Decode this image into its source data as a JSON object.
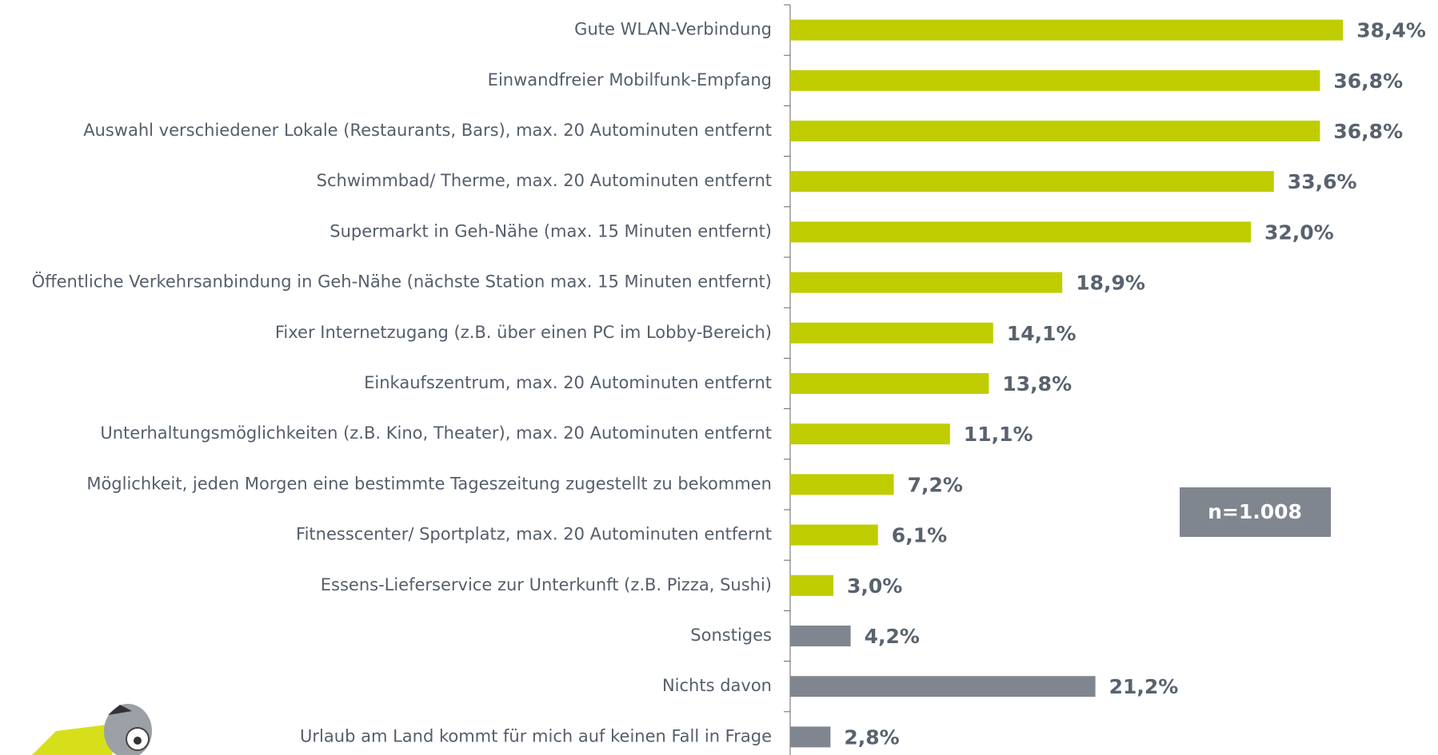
{
  "chart_data": {
    "type": "hbar",
    "categories": [
      "Gute WLAN-Verbindung",
      "Einwandfreier Mobilfunk-Empfang",
      "Auswahl verschiedener Lokale (Restaurants, Bars), max. 20 Autominuten entfernt",
      "Schwimmbad/ Therme, max. 20 Autominuten entfernt",
      "Supermarkt in Geh-Nähe (max. 15 Minuten entfernt)",
      "Öffentliche Verkehrsanbindung in Geh-Nähe (nächste Station max. 15 Minuten entfernt)",
      "Fixer Internetzugang (z.B. über einen PC im Lobby-Bereich)",
      "Einkaufszentrum, max. 20 Autominuten entfernt",
      "Unterhaltungsmöglichkeiten (z.B. Kino, Theater), max. 20 Autominuten entfernt",
      "Möglichkeit, jeden Morgen eine bestimmte Tageszeitung zugestellt zu bekommen",
      "Fitnesscenter/ Sportplatz, max. 20 Autominuten entfernt",
      "Essens-Lieferservice zur Unterkunft (z.B. Pizza, Sushi)",
      "Sonstiges",
      "Nichts davon",
      "Urlaub am Land kommt für mich auf keinen Fall in Frage"
    ],
    "values": [
      38.4,
      36.8,
      36.8,
      33.6,
      32.0,
      18.9,
      14.1,
      13.8,
      11.1,
      7.2,
      6.1,
      3.0,
      4.2,
      21.2,
      2.8
    ],
    "value_labels": [
      "38,4%",
      "36,8%",
      "36,8%",
      "33,6%",
      "32,0%",
      "18,9%",
      "14,1%",
      "13,8%",
      "11,1%",
      "7,2%",
      "6,1%",
      "3,0%",
      "4,2%",
      "21,2%",
      "2,8%"
    ],
    "colors": [
      "#bfcd00",
      "#bfcd00",
      "#bfcd00",
      "#bfcd00",
      "#bfcd00",
      "#bfcd00",
      "#bfcd00",
      "#bfcd00",
      "#bfcd00",
      "#bfcd00",
      "#bfcd00",
      "#bfcd00",
      "#80868f",
      "#80868f",
      "#80868f"
    ],
    "xlim": [
      0,
      45
    ],
    "annotation": "n=1.008"
  }
}
